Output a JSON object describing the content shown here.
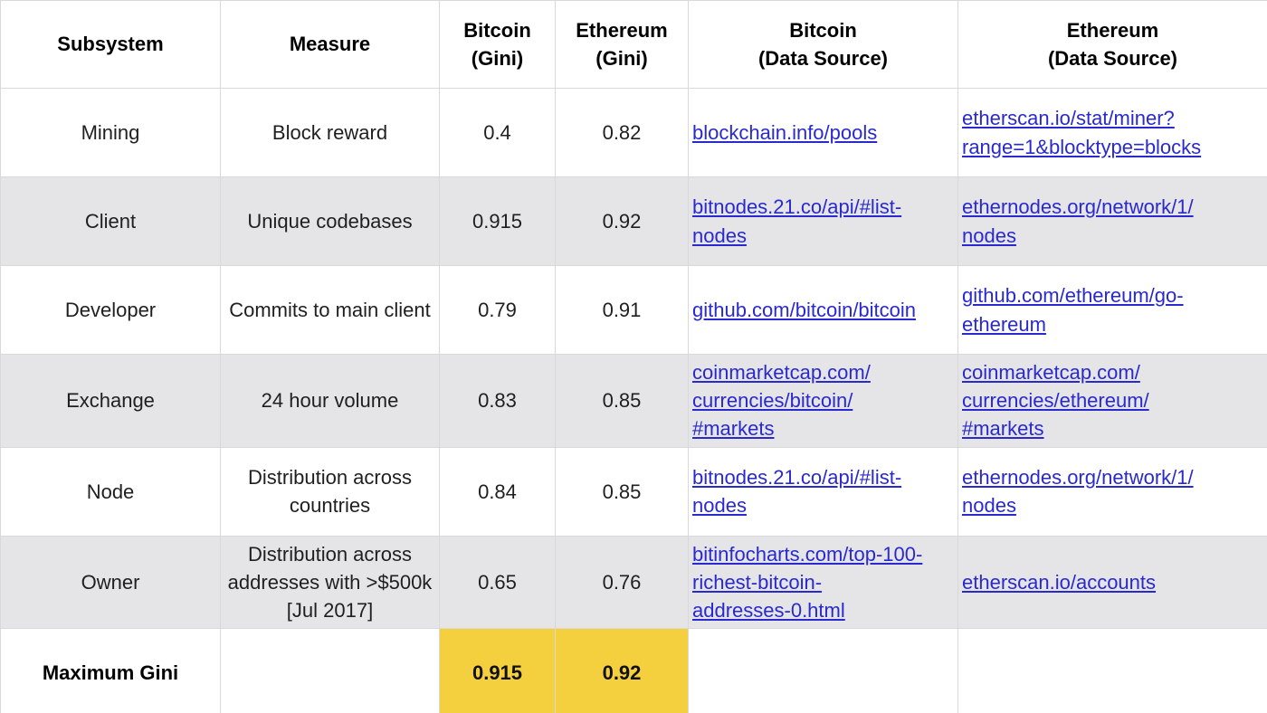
{
  "colors": {
    "stripe_row_bg": "#e5e5e7",
    "highlight_bg": "#f4d03f",
    "link_text": "#2929cd",
    "border": "#d9d9d9"
  },
  "table": {
    "headers": {
      "subsystem": "Subsystem",
      "measure": "Measure",
      "btc_gini": "Bitcoin\n(Gini)",
      "eth_gini": "Ethereum\n(Gini)",
      "btc_source": "Bitcoin\n(Data Source)",
      "eth_source": "Ethereum\n(Data Source)"
    },
    "rows": [
      {
        "subsystem": "Mining",
        "measure": "Block reward",
        "btc_gini": "0.4",
        "eth_gini": "0.82",
        "btc_source": "blockchain.info/pools",
        "eth_source": "etherscan.io/stat/miner?\nrange=1&blocktype=blocks"
      },
      {
        "subsystem": "Client",
        "measure": "Unique codebases",
        "btc_gini": "0.915",
        "eth_gini": "0.92",
        "btc_source": "bitnodes.21.co/api/#list-\nnodes",
        "eth_source": "ethernodes.org/network/1/\nnodes"
      },
      {
        "subsystem": "Developer",
        "measure": "Commits to main client",
        "btc_gini": "0.79",
        "eth_gini": "0.91",
        "btc_source": "github.com/bitcoin/bitcoin",
        "eth_source": "github.com/ethereum/go-\nethereum"
      },
      {
        "subsystem": "Exchange",
        "measure": "24 hour volume",
        "btc_gini": "0.83",
        "eth_gini": "0.85",
        "btc_source": "coinmarketcap.com/\ncurrencies/bitcoin/\n#markets",
        "eth_source": "coinmarketcap.com/\ncurrencies/ethereum/\n#markets"
      },
      {
        "subsystem": "Node",
        "measure": "Distribution across countries",
        "btc_gini": "0.84",
        "eth_gini": "0.85",
        "btc_source": "bitnodes.21.co/api/#list-\nnodes",
        "eth_source": "ethernodes.org/network/1/\nnodes"
      },
      {
        "subsystem": "Owner",
        "measure": "Distribution across addresses with >$500k [Jul 2017]",
        "btc_gini": "0.65",
        "eth_gini": "0.76",
        "btc_source": "bitinfocharts.com/top-100-\nrichest-bitcoin-\naddresses-0.html",
        "eth_source": "etherscan.io/accounts"
      }
    ],
    "summary_row": {
      "label": "Maximum Gini",
      "btc_gini": "0.915",
      "eth_gini": "0.92"
    }
  },
  "chart_data": {
    "type": "table",
    "columns": [
      "Subsystem",
      "Measure",
      "Bitcoin (Gini)",
      "Ethereum (Gini)",
      "Bitcoin (Data Source)",
      "Ethereum (Data Source)"
    ],
    "rows": [
      [
        "Mining",
        "Block reward",
        0.4,
        0.82,
        "blockchain.info/pools",
        "etherscan.io/stat/miner?range=1&blocktype=blocks"
      ],
      [
        "Client",
        "Unique codebases",
        0.915,
        0.92,
        "bitnodes.21.co/api/#list-nodes",
        "ethernodes.org/network/1/nodes"
      ],
      [
        "Developer",
        "Commits to main client",
        0.79,
        0.91,
        "github.com/bitcoin/bitcoin",
        "github.com/ethereum/go-ethereum"
      ],
      [
        "Exchange",
        "24 hour volume",
        0.83,
        0.85,
        "coinmarketcap.com/currencies/bitcoin/#markets",
        "coinmarketcap.com/currencies/ethereum/#markets"
      ],
      [
        "Node",
        "Distribution across countries",
        0.84,
        0.85,
        "bitnodes.21.co/api/#list-nodes",
        "ethernodes.org/network/1/nodes"
      ],
      [
        "Owner",
        "Distribution across addresses with >$500k [Jul 2017]",
        0.65,
        0.76,
        "bitinfocharts.com/top-100-richest-bitcoin-addresses-0.html",
        "etherscan.io/accounts"
      ]
    ],
    "summary": {
      "label": "Maximum Gini",
      "bitcoin_max_gini": 0.915,
      "ethereum_max_gini": 0.92
    },
    "highlighted_cells": [
      "Maximum Gini / Bitcoin (Gini)",
      "Maximum Gini / Ethereum (Gini)"
    ]
  }
}
